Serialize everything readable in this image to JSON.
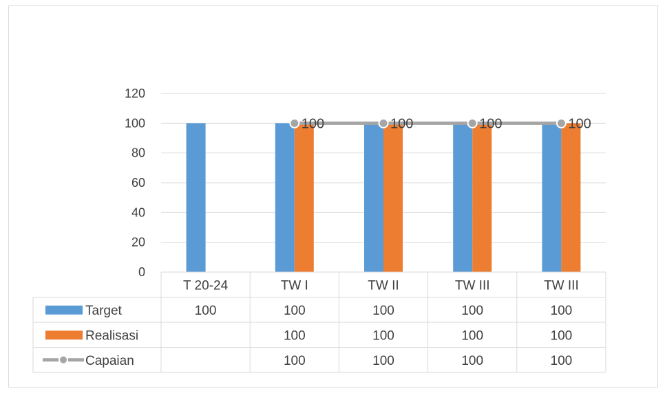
{
  "chart_data": {
    "type": "bar",
    "categories": [
      "T 20-24",
      "TW I",
      "TW II",
      "TW III",
      "TW III"
    ],
    "series": [
      {
        "name": "Target",
        "kind": "bar",
        "color": "#5b9bd5",
        "values": [
          100,
          100,
          100,
          100,
          100
        ]
      },
      {
        "name": "Realisasi",
        "kind": "bar",
        "color": "#ed7d31",
        "values": [
          null,
          100,
          100,
          100,
          100
        ]
      },
      {
        "name": "Capaian",
        "kind": "line",
        "color": "#a5a5a5",
        "values": [
          null,
          100,
          100,
          100,
          100
        ]
      }
    ],
    "ylim": [
      0,
      120
    ],
    "yticks": [
      0,
      20,
      40,
      60,
      80,
      100,
      120
    ],
    "grid": true,
    "data_labels": {
      "series": "Capaian",
      "values": [
        null,
        "100",
        "100",
        "100",
        "100"
      ]
    },
    "data_table": [
      {
        "legend": "Target",
        "cells": [
          "100",
          "100",
          "100",
          "100",
          "100"
        ]
      },
      {
        "legend": "Realisasi",
        "cells": [
          "",
          "100",
          "100",
          "100",
          "100"
        ]
      },
      {
        "legend": "Capaian",
        "cells": [
          "",
          "100",
          "100",
          "100",
          "100"
        ]
      }
    ]
  }
}
